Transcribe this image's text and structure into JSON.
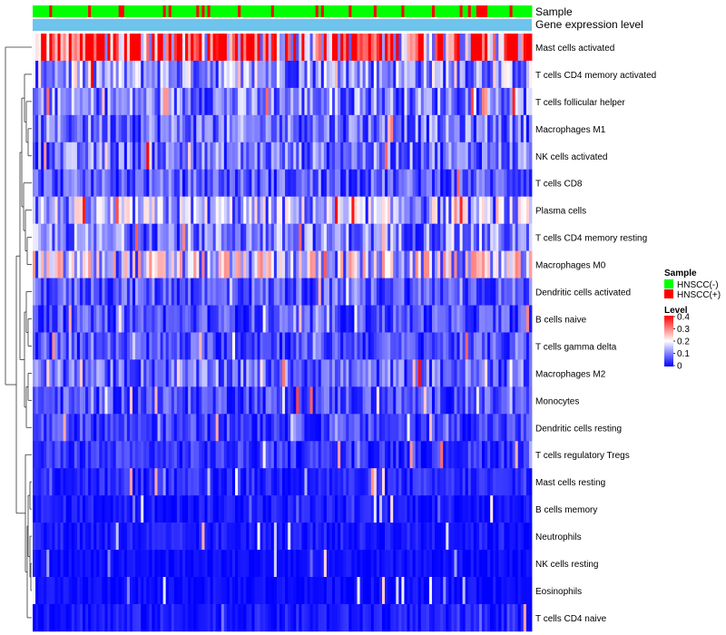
{
  "chart_data": {
    "type": "heatmap",
    "annotation_tracks": [
      "Sample",
      "Gene expression level"
    ],
    "rows": [
      "Mast cells activated",
      "T cells CD4 memory activated",
      "T cells follicular helper",
      "Macrophages M1",
      "NK cells activated",
      "T cells CD8",
      "Plasma cells",
      "T cells CD4 memory resting",
      "Macrophages M0",
      "Dendritic cells activated",
      "B cells naive",
      "T cells gamma delta",
      "Macrophages M2",
      "Monocytes",
      "Dendritic cells resting",
      "T cells regulatory  Tregs",
      "Mast cells resting",
      "B cells memory",
      "Neutrophils",
      "NK cells resting",
      "Eosinophils",
      "T cells CD4 naive"
    ],
    "row_mean_level": [
      0.33,
      0.12,
      0.1,
      0.09,
      0.09,
      0.07,
      0.13,
      0.1,
      0.16,
      0.07,
      0.06,
      0.06,
      0.08,
      0.06,
      0.05,
      0.04,
      0.03,
      0.02,
      0.02,
      0.01,
      0.01,
      0.02
    ],
    "n_samples": 180,
    "sample_groups": [
      "HNSCC(-)",
      "HNSCC(+)"
    ],
    "group_colors": {
      "HNSCC(-)": "#00ff00",
      "HNSCC(+)": "#ff0000"
    },
    "expression_track_color": "#6ec4ec",
    "color_scale": {
      "min": 0,
      "mid": 0.2,
      "max": 0.4,
      "low": "#0000ff",
      "mid_color": "#ffffff",
      "high": "#ff0000"
    },
    "legend": {
      "sample_title": "Sample",
      "level_title": "Level",
      "level_ticks": [
        "0.4",
        "0.3",
        "0.2",
        "0.1",
        "0"
      ],
      "position": "right"
    }
  }
}
